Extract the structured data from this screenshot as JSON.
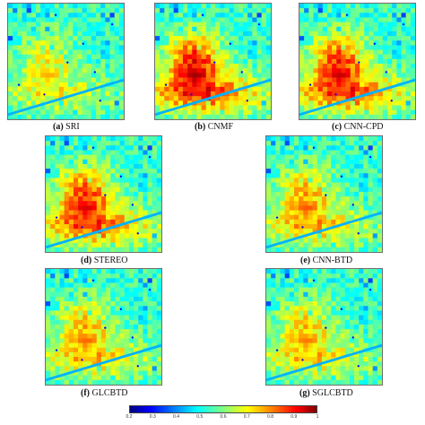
{
  "panels": [
    {
      "key": "a",
      "label": "(a)",
      "name": "SRI",
      "intensity": 0.2
    },
    {
      "key": "b",
      "label": "(b)",
      "name": "CNMF",
      "intensity": 0.95
    },
    {
      "key": "c",
      "label": "(c)",
      "name": "CNN-CPD",
      "intensity": 0.85
    },
    {
      "key": "d",
      "label": "(d)",
      "name": "STEREO",
      "intensity": 0.8
    },
    {
      "key": "e",
      "label": "(e)",
      "name": "CNN-BTD",
      "intensity": 0.45
    },
    {
      "key": "f",
      "label": "(f)",
      "name": "GLCBTD",
      "intensity": 0.4
    },
    {
      "key": "g",
      "label": "(g)",
      "name": "SGLCBTD",
      "intensity": 0.35
    }
  ],
  "colorbar": {
    "colormap": "jet",
    "range": [
      0.2,
      1
    ],
    "ticks": [
      "0.2",
      "0.3",
      "0.4",
      "0.5",
      "0.6",
      "0.7",
      "0.8",
      "0.9",
      "1"
    ]
  }
}
